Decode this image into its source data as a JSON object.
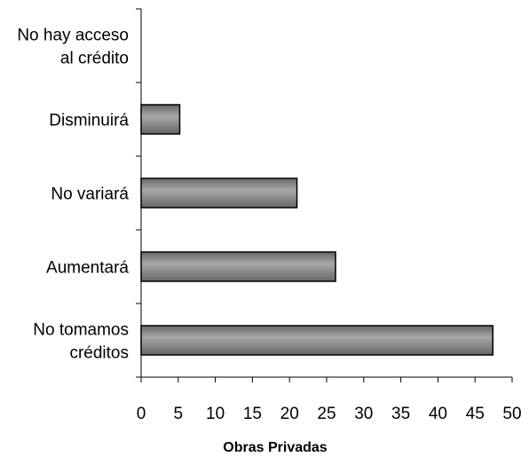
{
  "chart_data": {
    "type": "bar",
    "orientation": "horizontal",
    "categories": [
      [
        "No hay acceso",
        "al crédito"
      ],
      [
        "Disminuirá"
      ],
      [
        "No variará"
      ],
      [
        "Aumentará"
      ],
      [
        "No tomamos",
        "créditos"
      ]
    ],
    "values": [
      0,
      5.2,
      21,
      26.2,
      47.4
    ],
    "xlabel": "Obras Privadas",
    "xlim": [
      0,
      50
    ],
    "xticks": [
      0,
      5,
      10,
      15,
      20,
      25,
      30,
      35,
      40,
      45,
      50
    ],
    "grid": false,
    "legend": "none",
    "bar_color": "#666666",
    "bar_highlight": "#a8a8a8",
    "bar_stroke": "#000000"
  }
}
